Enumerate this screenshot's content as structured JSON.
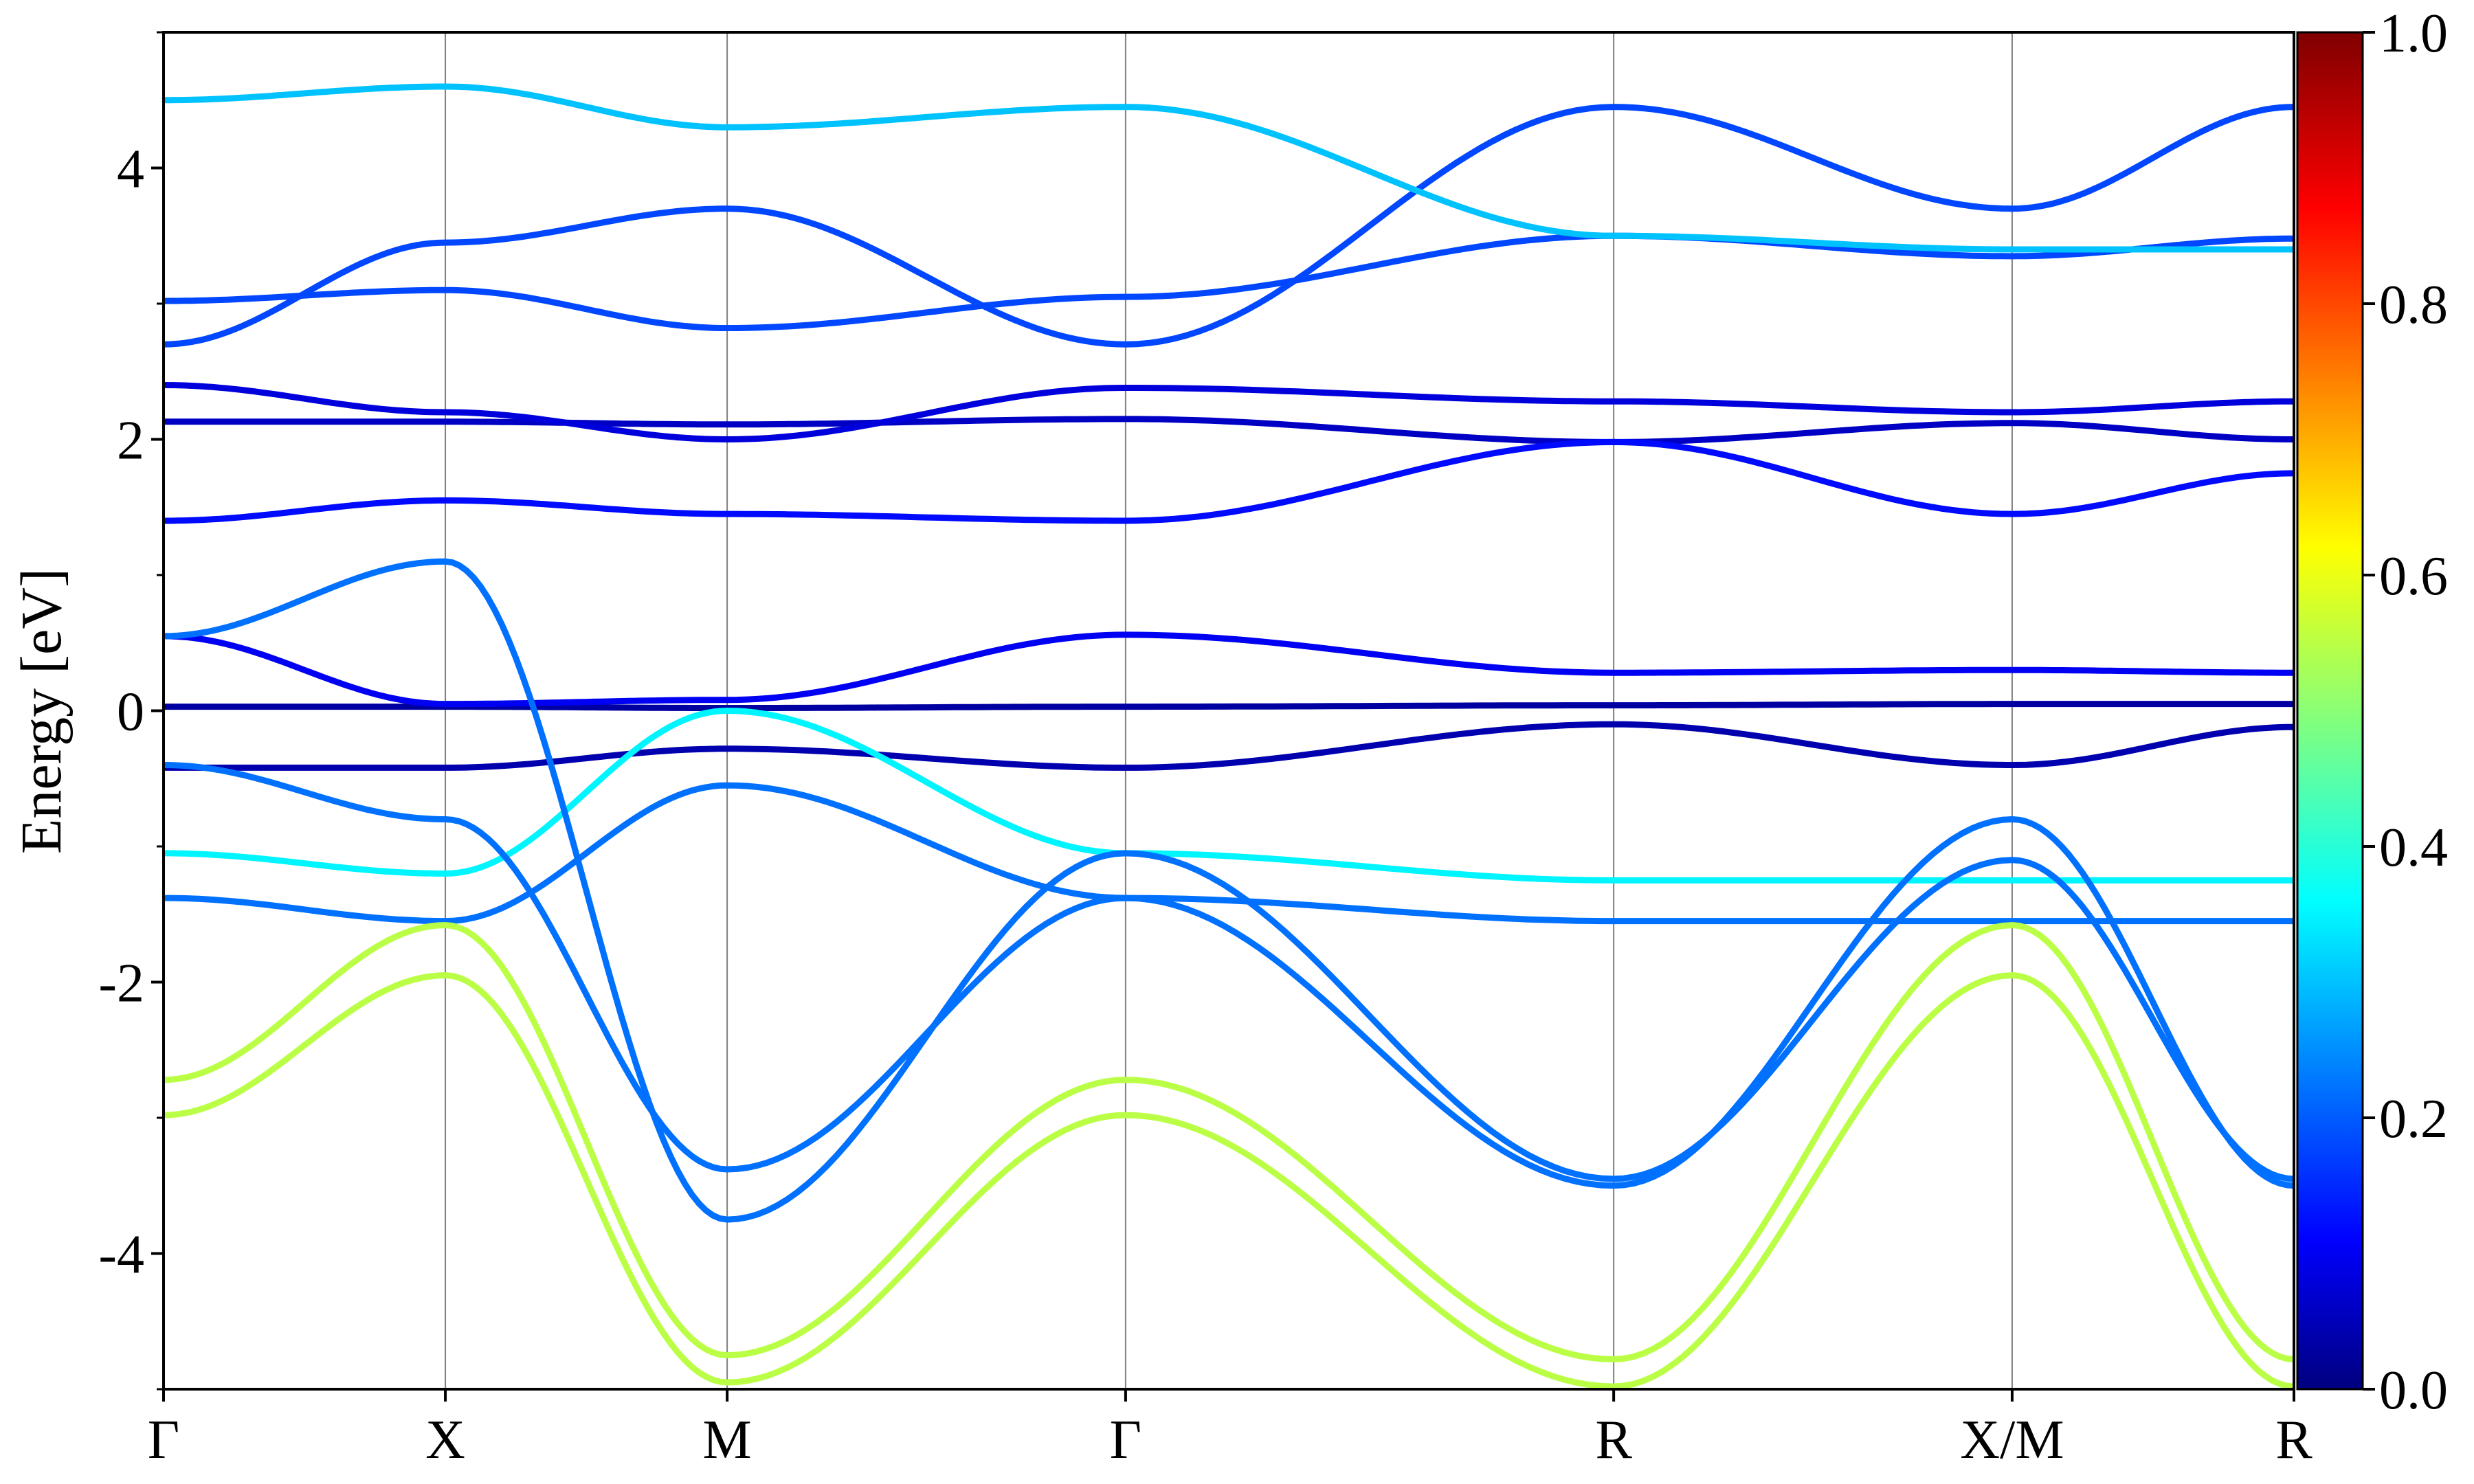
{
  "chart_data": {
    "type": "line",
    "title": "",
    "xlabel": "",
    "ylabel": "Energy [eV]",
    "ylim": [
      -5,
      5
    ],
    "y_ticks": [
      -4,
      -2,
      0,
      2,
      4
    ],
    "y_tick_labels": [
      "-4",
      "-2",
      "0",
      "2",
      "4"
    ],
    "grid": "vertical lines at high-symmetry points",
    "k_path": [
      {
        "label": "Γ",
        "k": 0.0
      },
      {
        "label": "X",
        "k": 0.5
      },
      {
        "label": "M",
        "k": 1.0
      },
      {
        "label": "Γ",
        "k": 1.707
      },
      {
        "label": "R",
        "k": 2.573
      },
      {
        "label": "X/M",
        "k": 3.28
      },
      {
        "label": "R",
        "k": 3.78
      }
    ],
    "xlim": [
      0.0,
      3.78
    ],
    "colorbar": {
      "colormap": "jet",
      "range": [
        0.0,
        1.0
      ],
      "tick_values": [
        0.0,
        0.2,
        0.4,
        0.6,
        0.8,
        1.0
      ],
      "tick_labels": [
        "0.0",
        "0.2",
        "0.4",
        "0.6",
        "0.8",
        "1.0"
      ]
    },
    "colors": {
      "band_low_weight": "#1a1ad9",
      "band_mid_weight": "#23a6e0",
      "band_high_weight": "#8ff060"
    },
    "series": [
      {
        "weight": 0.03,
        "k": [
          0,
          0.5,
          1.0,
          1.707,
          2.573,
          3.28,
          3.78
        ],
        "energy": [
          0.03,
          0.03,
          0.02,
          0.03,
          0.04,
          0.05,
          0.05
        ]
      },
      {
        "weight": 0.04,
        "k": [
          0,
          0.5,
          1.0,
          1.707,
          2.573,
          3.28,
          3.78
        ],
        "energy": [
          -0.42,
          -0.42,
          -0.28,
          -0.42,
          -0.1,
          -0.4,
          -0.12
        ]
      },
      {
        "weight": 0.1,
        "k": [
          0,
          0.5,
          1.0,
          1.707,
          2.573,
          3.28,
          3.78
        ],
        "energy": [
          0.55,
          0.05,
          0.08,
          0.56,
          0.28,
          0.3,
          0.28
        ]
      },
      {
        "weight": 0.06,
        "k": [
          0,
          0.5,
          1.0,
          1.707,
          2.573,
          3.28,
          3.78
        ],
        "energy": [
          2.13,
          2.13,
          2.11,
          2.15,
          1.98,
          2.12,
          2.0
        ]
      },
      {
        "weight": 0.08,
        "k": [
          0,
          0.5,
          1.0,
          1.707,
          2.573,
          3.28,
          3.78
        ],
        "energy": [
          2.4,
          2.2,
          2.0,
          2.38,
          2.28,
          2.2,
          2.28
        ]
      },
      {
        "weight": 0.12,
        "k": [
          0,
          0.5,
          1.0,
          1.707,
          2.573,
          3.28,
          3.78
        ],
        "energy": [
          1.4,
          1.55,
          1.45,
          1.4,
          1.98,
          1.45,
          1.75
        ]
      },
      {
        "weight": 0.18,
        "k": [
          0,
          0.5,
          1.0,
          1.707,
          2.573,
          3.28,
          3.78
        ],
        "energy": [
          3.02,
          3.1,
          2.82,
          3.05,
          3.5,
          3.35,
          3.48
        ]
      },
      {
        "weight": 0.22,
        "k": [
          0,
          0.5,
          1.0,
          1.707,
          2.573,
          3.28,
          3.78
        ],
        "energy": [
          -1.38,
          -1.55,
          -0.55,
          -1.38,
          -1.55,
          -1.55,
          -1.55
        ]
      },
      {
        "weight": 0.35,
        "k": [
          0,
          0.5,
          1.0,
          1.707,
          2.573,
          3.28,
          3.78
        ],
        "energy": [
          -1.05,
          -1.2,
          0.0,
          -1.05,
          -1.25,
          -1.25,
          -1.25
        ]
      },
      {
        "weight": 0.22,
        "k": [
          0,
          0.5,
          1.0,
          1.707,
          2.573,
          3.28,
          3.78
        ],
        "energy": [
          -0.4,
          -0.8,
          -3.38,
          -1.38,
          -3.5,
          -0.8,
          -3.5
        ]
      },
      {
        "weight": 0.22,
        "k": [
          0,
          0.5,
          1.0,
          1.707,
          2.573,
          3.28,
          3.78
        ],
        "energy": [
          0.55,
          1.1,
          -3.75,
          -1.05,
          -3.45,
          -1.1,
          -3.45
        ]
      },
      {
        "weight": 0.55,
        "k": [
          0,
          0.5,
          1.0,
          1.707,
          2.573,
          3.28,
          3.78
        ],
        "energy": [
          -2.72,
          -1.58,
          -4.75,
          -2.72,
          -4.78,
          -1.58,
          -4.78
        ]
      },
      {
        "weight": 0.55,
        "k": [
          0,
          0.5,
          1.0,
          1.707,
          2.573,
          3.28,
          3.78
        ],
        "energy": [
          -2.98,
          -1.95,
          -4.95,
          -2.98,
          -4.98,
          -1.95,
          -4.98
        ]
      },
      {
        "weight": 0.18,
        "k": [
          0,
          0.5,
          1.0,
          1.707,
          2.573,
          3.28,
          3.78
        ],
        "energy": [
          2.7,
          3.45,
          3.7,
          2.7,
          4.45,
          3.7,
          4.45
        ]
      },
      {
        "weight": 0.3,
        "k": [
          0,
          0.5,
          1.0,
          1.707,
          2.573,
          3.28,
          3.78
        ],
        "energy": [
          4.5,
          4.6,
          4.3,
          4.45,
          3.5,
          3.4,
          3.4
        ]
      }
    ]
  }
}
